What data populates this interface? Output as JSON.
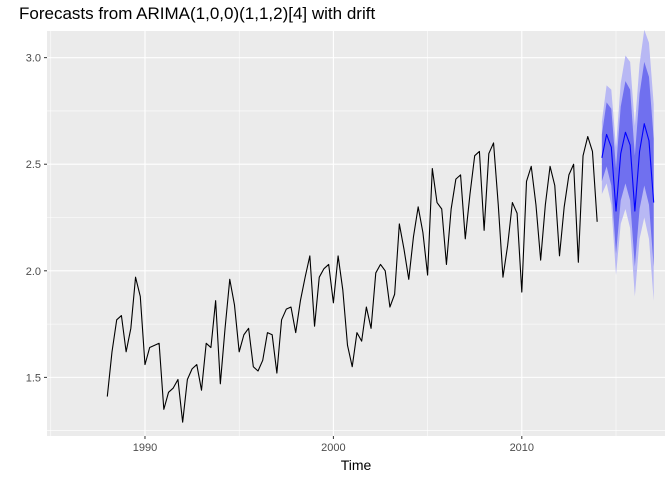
{
  "chart_data": {
    "type": "line",
    "title": "Forecasts from ARIMA(1,0,0)(1,1,2)[4] with drift",
    "xlabel": "Time",
    "ylabel": "",
    "xlim": [
      1984.8,
      2017.6
    ],
    "ylim": [
      1.225,
      3.125
    ],
    "x_ticks": [
      1990,
      2000,
      2010
    ],
    "y_ticks": [
      1.5,
      2.0,
      2.5,
      3.0
    ],
    "x_tick_labels": [
      "1990",
      "2000",
      "2010"
    ],
    "y_tick_labels": [
      "1.5",
      "2.0",
      "2.5",
      "3.0"
    ],
    "grid": true,
    "legend": "none",
    "colors": {
      "panel_bg": "#ebebeb",
      "grid_major": "#ffffff",
      "series": "#000000",
      "forecast_mean": "#0000ff",
      "pi80": "#7070ef",
      "pi95": "#b8b8f4"
    },
    "series": [
      {
        "x_start": 1988.0,
        "step": 0.25,
        "values": [
          1.41,
          1.62,
          1.77,
          1.79,
          1.62,
          1.73,
          1.97,
          1.88,
          1.56,
          1.64,
          1.65,
          1.66,
          1.35,
          1.43,
          1.45,
          1.49,
          1.29,
          1.49,
          1.54,
          1.56,
          1.44,
          1.66,
          1.64,
          1.86,
          1.47,
          1.73,
          1.96,
          1.84,
          1.62,
          1.7,
          1.73,
          1.55,
          1.53,
          1.58,
          1.71,
          1.7,
          1.52,
          1.77,
          1.82,
          1.83,
          1.71,
          1.86,
          1.97,
          2.07,
          1.74,
          1.97,
          2.01,
          2.03,
          1.85,
          2.07,
          1.91,
          1.65,
          1.55,
          1.71,
          1.67,
          1.83,
          1.73,
          1.99,
          2.03,
          2.0,
          1.83,
          1.89,
          2.22,
          2.1,
          1.96,
          2.16,
          2.3,
          2.18,
          1.98,
          2.48,
          2.32,
          2.29,
          2.03,
          2.29,
          2.43,
          2.45,
          2.15,
          2.36,
          2.54,
          2.56,
          2.19,
          2.55,
          2.6,
          2.31,
          1.97,
          2.12,
          2.32,
          2.27,
          1.9,
          2.42,
          2.49,
          2.31,
          2.05,
          2.31,
          2.49,
          2.4,
          2.07,
          2.3,
          2.45,
          2.5,
          2.04,
          2.54,
          2.63,
          2.56,
          2.23
        ]
      }
    ],
    "forecast": {
      "x_start": 2014.25,
      "step": 0.25,
      "mean": [
        2.53,
        2.64,
        2.58,
        2.28,
        2.55,
        2.65,
        2.59,
        2.28,
        2.56,
        2.69,
        2.61,
        2.32
      ],
      "pi80": [
        [
          2.42,
          2.64
        ],
        [
          2.49,
          2.79
        ],
        [
          2.4,
          2.76
        ],
        [
          2.08,
          2.48
        ],
        [
          2.33,
          2.77
        ],
        [
          2.41,
          2.89
        ],
        [
          2.33,
          2.85
        ],
        [
          2.02,
          2.54
        ],
        [
          2.29,
          2.83
        ],
        [
          2.4,
          2.98
        ],
        [
          2.31,
          2.91
        ],
        [
          2.02,
          2.62
        ]
      ],
      "pi95": [
        [
          2.36,
          2.7
        ],
        [
          2.41,
          2.87
        ],
        [
          2.31,
          2.85
        ],
        [
          1.98,
          2.58
        ],
        [
          2.22,
          2.88
        ],
        [
          2.29,
          3.01
        ],
        [
          2.2,
          2.98
        ],
        [
          1.88,
          2.68
        ],
        [
          2.15,
          2.97
        ],
        [
          2.25,
          3.13
        ],
        [
          2.15,
          3.07
        ],
        [
          1.86,
          2.78
        ]
      ]
    }
  }
}
